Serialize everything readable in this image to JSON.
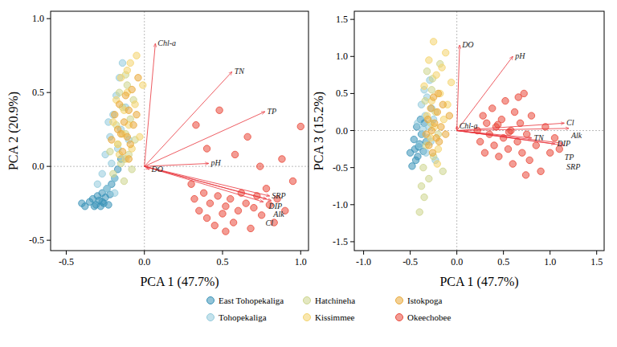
{
  "chart_data": [
    {
      "type": "scatter",
      "xlabel": "PCA 1 (47.7%)",
      "ylabel": "PCA 2 (20.9%)",
      "xlim": [
        -0.6,
        1.05
      ],
      "ylim": [
        -0.57,
        1.05
      ],
      "xticks": [
        -0.5,
        {
          "value": 0,
          "label": "0.0"
        },
        0.5,
        {
          "value": 1,
          "label": "1.0"
        }
      ],
      "yticks": [
        -0.5,
        {
          "value": 0,
          "label": "0.0"
        },
        0.5,
        {
          "value": 1,
          "label": "1.0"
        }
      ],
      "legend": "bottom",
      "series": [
        {
          "name": "East Tohopekaliga",
          "color": "#3b93b8",
          "x": [
            -0.4,
            -0.38,
            -0.35,
            -0.33,
            -0.31,
            -0.3,
            -0.29,
            -0.28,
            -0.27,
            -0.26,
            -0.25,
            -0.24,
            -0.23,
            -0.22,
            -0.21,
            -0.19,
            -0.17,
            -0.15,
            -0.32,
            -0.27
          ],
          "values": [
            -0.25,
            -0.27,
            -0.24,
            -0.22,
            -0.26,
            -0.2,
            -0.23,
            -0.27,
            -0.18,
            -0.25,
            -0.21,
            -0.15,
            -0.26,
            -0.19,
            -0.12,
            -0.08,
            -0.02,
            0.05,
            -0.27,
            -0.24
          ]
        },
        {
          "name": "Tohopekaliga",
          "color": "#93cbdc",
          "x": [
            -0.3,
            -0.27,
            -0.25,
            -0.24,
            -0.22,
            -0.21,
            -0.2,
            -0.19,
            -0.18,
            -0.17,
            -0.16,
            -0.15,
            -0.14,
            -0.13,
            -0.12,
            -0.1,
            -0.23,
            -0.19
          ],
          "values": [
            -0.12,
            -0.05,
            0.08,
            -0.15,
            0.2,
            0.02,
            0.35,
            -0.08,
            0.48,
            0.12,
            0.6,
            0.25,
            0.7,
            0.05,
            0.4,
            0.18,
            0.3,
            -0.18
          ]
        },
        {
          "name": "Hatchineha",
          "color": "#cdd58e",
          "x": [
            -0.22,
            -0.2,
            -0.18,
            -0.17,
            -0.15,
            -0.14,
            -0.13,
            -0.12,
            -0.11,
            -0.1,
            -0.09,
            -0.08,
            -0.07,
            -0.06,
            -0.16,
            -0.12
          ],
          "values": [
            0.1,
            -0.05,
            0.28,
            0.15,
            0.02,
            0.4,
            -0.1,
            0.22,
            0.55,
            0.08,
            0.32,
            -0.02,
            0.45,
            0.18,
            0.5,
            0.62
          ]
        },
        {
          "name": "Kissimmee",
          "color": "#f4d46e",
          "x": [
            -0.2,
            -0.18,
            -0.17,
            -0.15,
            -0.14,
            -0.13,
            -0.12,
            -0.11,
            -0.1,
            -0.09,
            -0.08,
            -0.06,
            -0.05,
            -0.03,
            -0.01,
            -0.16,
            -0.11
          ],
          "values": [
            0.3,
            0.45,
            0.15,
            0.6,
            0.22,
            0.38,
            0.05,
            0.5,
            0.28,
            0.7,
            0.12,
            0.42,
            0.75,
            0.2,
            0.55,
            0.08,
            0.65
          ]
        },
        {
          "name": "Istokpoga",
          "color": "#e9aa3c",
          "x": [
            -0.21,
            -0.19,
            -0.17,
            -0.16,
            -0.14,
            -0.13,
            -0.12,
            -0.11,
            -0.1,
            -0.09,
            -0.08,
            -0.07,
            -0.05,
            -0.04,
            -0.15,
            -0.1
          ],
          "values": [
            0.18,
            0.35,
            0.25,
            0.42,
            0.1,
            0.3,
            0.48,
            0.2,
            0.38,
            0.15,
            0.52,
            0.28,
            0.35,
            0.6,
            0.22,
            0.05
          ]
        },
        {
          "name": "Okeechobee",
          "color": "#ea4a3c",
          "x": [
            0.32,
            0.35,
            0.38,
            0.4,
            0.42,
            0.45,
            0.47,
            0.5,
            0.52,
            0.55,
            0.57,
            0.6,
            0.62,
            0.65,
            0.68,
            0.7,
            0.72,
            0.75,
            0.78,
            0.8,
            0.83,
            0.85,
            0.9,
            0.95,
            1.0,
            0.33,
            0.48,
            0.58,
            0.66,
            0.74,
            0.4,
            0.3,
            0.52,
            0.88
          ],
          "values": [
            -0.22,
            -0.3,
            -0.18,
            -0.35,
            -0.25,
            -0.4,
            -0.2,
            -0.32,
            -0.27,
            -0.22,
            -0.38,
            -0.3,
            -0.18,
            -0.25,
            -0.42,
            -0.28,
            -0.2,
            -0.33,
            -0.15,
            -0.26,
            -0.38,
            -0.22,
            -0.3,
            -0.1,
            0.27,
            0.28,
            0.38,
            0.08,
            0.2,
            0.0,
            0.12,
            -0.12,
            -0.44,
            0.05
          ]
        }
      ],
      "loadings": {
        "color": "#e8323a",
        "names": [
          "Chl-a",
          "TN",
          "TP",
          "pH",
          "DO",
          "SRP",
          "DIP",
          "Alk",
          "Cl"
        ],
        "x": [
          0.07,
          0.56,
          0.77,
          0.41,
          0.03,
          0.8,
          0.78,
          0.81,
          0.76
        ],
        "y": [
          0.83,
          0.64,
          0.37,
          0.02,
          -0.02,
          -0.2,
          -0.22,
          -0.23,
          -0.24
        ]
      }
    },
    {
      "type": "scatter",
      "xlabel": "PCA 1 (47.7%)",
      "ylabel": "PCA 3 (15.2%)",
      "xlim": [
        -1.1,
        1.58
      ],
      "ylim": [
        -1.62,
        1.61
      ],
      "xticks": [
        {
          "value": -1,
          "label": "-1.0"
        },
        -0.5,
        {
          "value": 0,
          "label": "0.0"
        },
        0.5,
        {
          "value": 1,
          "label": "1.0"
        },
        1.5
      ],
      "yticks": [
        {
          "value": -1.5,
          "label": "-1.5"
        },
        {
          "value": -1,
          "label": "-1.0"
        },
        -0.5,
        {
          "value": 0,
          "label": "0.0"
        },
        0.5,
        {
          "value": 1,
          "label": "1.0"
        },
        1.5
      ],
      "series": [
        {
          "color": "#3b93b8",
          "x": [
            -0.5,
            -0.48,
            -0.46,
            -0.45,
            -0.43,
            -0.42,
            -0.4,
            -0.39,
            -0.38,
            -0.36,
            -0.35,
            -0.33,
            -0.44,
            -0.41
          ],
          "values": [
            -0.3,
            -0.48,
            -0.12,
            -0.25,
            0.05,
            -0.35,
            -0.18,
            0.15,
            -0.05,
            -0.28,
            0.1,
            -0.15,
            -0.4,
            -0.22
          ]
        },
        {
          "color": "#93cbdc",
          "x": [
            -0.42,
            -0.4,
            -0.38,
            -0.37,
            -0.35,
            -0.34,
            -0.33,
            -0.32,
            -0.3,
            -0.29,
            -0.28,
            -0.27,
            -0.25,
            -0.23,
            -0.36,
            -0.31
          ],
          "values": [
            0.1,
            -0.2,
            0.35,
            -0.05,
            0.55,
            0.2,
            -0.3,
            0.45,
            0.05,
            0.68,
            -0.15,
            0.3,
            0.15,
            -0.4,
            0.02,
            -0.1
          ]
        },
        {
          "color": "#cdd58e",
          "x": [
            -0.4,
            -0.38,
            -0.36,
            -0.34,
            -0.33,
            -0.32,
            -0.3,
            -0.28,
            -0.27,
            -0.25,
            -0.23,
            -0.2,
            -0.18,
            -0.15,
            -0.35,
            -0.26
          ],
          "values": [
            -1.1,
            -0.75,
            -0.5,
            0.4,
            -0.2,
            0.8,
            -0.65,
            0.1,
            0.55,
            -0.35,
            0.25,
            -0.05,
            0.9,
            -0.55,
            -0.9,
            0.7
          ]
        },
        {
          "color": "#f4d46e",
          "x": [
            -0.35,
            -0.32,
            -0.3,
            -0.28,
            -0.27,
            -0.25,
            -0.24,
            -0.22,
            -0.2,
            -0.18,
            -0.16,
            -0.14,
            -0.12,
            -0.1,
            -0.06,
            -0.21
          ],
          "values": [
            0.6,
            0.2,
            0.95,
            -0.1,
            0.4,
            1.2,
            0.05,
            0.75,
            -0.25,
            0.5,
            0.85,
            0.15,
            1.05,
            0.35,
            0.65,
            -0.45
          ]
        },
        {
          "color": "#e9aa3c",
          "x": [
            -0.33,
            -0.31,
            -0.3,
            -0.28,
            -0.27,
            -0.26,
            -0.25,
            -0.24,
            -0.22,
            -0.21,
            -0.2,
            -0.19,
            -0.17,
            -0.15,
            -0.12,
            -0.08
          ],
          "values": [
            -0.05,
            0.15,
            -0.2,
            0.3,
            0.0,
            -0.3,
            0.45,
            0.1,
            -0.1,
            0.25,
            0.5,
            -0.15,
            0.05,
            0.35,
            -0.05,
            0.2
          ]
        },
        {
          "color": "#ea4a3c",
          "x": [
            0.22,
            0.25,
            0.28,
            0.3,
            0.32,
            0.35,
            0.38,
            0.4,
            0.42,
            0.45,
            0.48,
            0.5,
            0.52,
            0.55,
            0.58,
            0.6,
            0.62,
            0.65,
            0.68,
            0.7,
            0.72,
            0.75,
            0.78,
            0.8,
            0.85,
            0.9,
            0.95,
            1.0,
            1.05,
            1.1,
            0.44,
            0.56,
            0.66,
            0.74
          ],
          "values": [
            0.0,
            -0.15,
            0.2,
            -0.3,
            0.1,
            -0.05,
            0.3,
            -0.2,
            0.05,
            -0.35,
            0.15,
            -0.1,
            0.4,
            -0.25,
            0.0,
            -0.45,
            0.25,
            -0.15,
            0.1,
            -0.3,
            0.5,
            -0.05,
            -0.4,
            0.2,
            -0.2,
            -0.55,
            0.05,
            -0.3,
            -0.1,
            -0.25,
            0.08,
            -0.02,
            0.45,
            -0.6
          ]
        }
      ],
      "loadings": {
        "color": "#e8323a",
        "names": [
          "DO",
          "pH",
          "Chl-a",
          "Cl",
          "Alk",
          "TN",
          "DIP",
          "TP",
          "SRP"
        ],
        "x": [
          0.03,
          0.6,
          0.0,
          1.15,
          1.2,
          0.8,
          1.05,
          1.13,
          1.15
        ],
        "y": [
          1.15,
          1.0,
          0.06,
          0.1,
          0.03,
          -0.1,
          -0.18,
          -0.17,
          -0.2
        ]
      }
    }
  ]
}
